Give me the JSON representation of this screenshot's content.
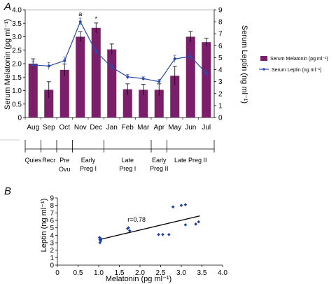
{
  "chart_data": [
    {
      "panel_label": "A",
      "type": "bar",
      "categories": [
        "Aug",
        "Sep",
        "Oct",
        "Nov",
        "Dec",
        "Jan",
        "Feb",
        "Mar",
        "Apr",
        "May",
        "Jun",
        "Jul"
      ],
      "series": [
        {
          "name": "Serum Melatonin (pg ml⁻¹)",
          "kind": "bar",
          "axis": "left",
          "color": "#7b1f6a",
          "values": [
            2.0,
            1.03,
            1.77,
            3.0,
            3.33,
            2.53,
            1.05,
            1.03,
            1.03,
            1.55,
            3.0,
            2.8
          ],
          "errors": [
            0.18,
            0.3,
            0.22,
            0.18,
            0.18,
            0.2,
            0.2,
            0.2,
            0.22,
            0.35,
            0.2,
            0.15
          ]
        },
        {
          "name": "Serum Leptin (ng ml⁻¹)",
          "kind": "line",
          "axis": "right",
          "color": "#2a4aa8",
          "values": [
            4.4,
            4.3,
            4.75,
            8.0,
            5.5,
            4.2,
            3.4,
            3.25,
            3.0,
            4.9,
            5.1,
            3.7
          ],
          "errors": [
            0.3,
            0.3,
            0.3,
            0.3,
            0.3,
            0.25,
            0.2,
            0.15,
            0.2,
            0.3,
            0.3,
            0.2
          ]
        }
      ],
      "ylabel": "Serum Melatonin (pg ml⁻¹)",
      "y2label": "Serum Leptin (ng ml⁻¹)",
      "ylim": [
        0,
        4.0
      ],
      "yticks": [
        "0",
        "0.5",
        "1.0",
        "1.5",
        "2.0",
        "2.5",
        "3.0",
        "3.5",
        "4.0"
      ],
      "y2lim": [
        0,
        9
      ],
      "y2ticks": [
        "0",
        "1",
        "2",
        "3",
        "4",
        "5",
        "6",
        "7",
        "8",
        "9"
      ],
      "annotations": [
        {
          "category": "Nov",
          "text": "a"
        },
        {
          "category": "Dec",
          "text": "*"
        }
      ],
      "legend_position": "right",
      "phases": [
        {
          "label": "Quies",
          "from": 0,
          "to": 1
        },
        {
          "label": "Recr",
          "from": 1,
          "to": 2
        },
        {
          "label": "Pre",
          "from": 2,
          "to": 3
        },
        {
          "label": "Ovu",
          "from": 2,
          "to": 3,
          "second_line": true
        },
        {
          "label": "Early\nPreg I",
          "from": 3,
          "to": 5
        },
        {
          "label": "Late\nPreg I",
          "from": 5,
          "to": 8
        },
        {
          "label": "Early\nPreg II",
          "from": 8,
          "to": 9
        },
        {
          "label": "Late Preg II",
          "from": 9,
          "to": 12
        }
      ]
    },
    {
      "panel_label": "B",
      "type": "scatter",
      "xlabel": "Melatonin (pg ml⁻¹)",
      "ylabel": "Leptin (ng ml⁻¹)",
      "xlim": [
        0,
        4.0
      ],
      "xticks": [
        "0",
        "0.5",
        "1.0",
        "1.5",
        "2.0",
        "2.5",
        "3.0",
        "3.5",
        "4.0"
      ],
      "ylim": [
        0,
        9
      ],
      "yticks": [
        "0",
        "1",
        "2",
        "3",
        "4",
        "5",
        "6",
        "7",
        "8",
        "9"
      ],
      "annotation": "r=0.78",
      "color": "#1f3fa0",
      "points": [
        [
          1.02,
          3.7
        ],
        [
          1.03,
          3.4
        ],
        [
          1.05,
          3.25
        ],
        [
          1.03,
          3.0
        ],
        [
          1.06,
          3.5
        ],
        [
          1.7,
          4.9
        ],
        [
          1.75,
          4.6
        ],
        [
          1.72,
          5.0
        ],
        [
          2.45,
          4.1
        ],
        [
          2.55,
          4.1
        ],
        [
          2.7,
          4.1
        ],
        [
          2.8,
          7.8
        ],
        [
          3.0,
          8.0
        ],
        [
          3.1,
          8.1
        ],
        [
          3.1,
          5.4
        ],
        [
          3.35,
          5.5
        ],
        [
          3.42,
          5.8
        ]
      ],
      "fit": {
        "x": [
          1.0,
          3.45
        ],
        "y": [
          3.4,
          6.6
        ]
      }
    }
  ]
}
